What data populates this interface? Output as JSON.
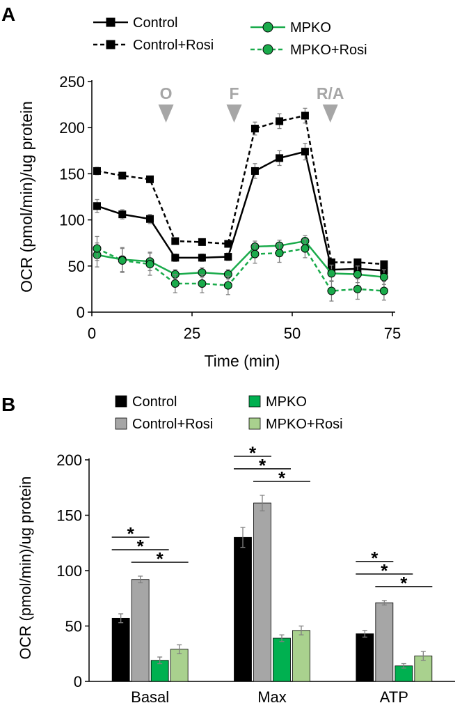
{
  "panel_a": {
    "label": "A"
  },
  "panel_b": {
    "label": "B"
  },
  "chart_data": [
    {
      "type": "line",
      "xlabel": "Time (min)",
      "ylabel": "OCR (pmol/min)/ug protein",
      "xlim": [
        0,
        75
      ],
      "ylim": [
        0,
        250
      ],
      "xticks": [
        0,
        25,
        50,
        75
      ],
      "yticks": [
        0,
        50,
        100,
        150,
        200,
        250
      ],
      "legend_position": "top",
      "grid": false,
      "x": [
        1.3,
        7.6,
        14.5,
        20.8,
        27.5,
        34,
        40.7,
        46.8,
        53.2,
        59.8,
        66.3,
        72.9
      ],
      "annotations": [
        {
          "label": "O",
          "x": 18.5
        },
        {
          "label": "F",
          "x": 35.5
        },
        {
          "label": "R/A",
          "x": 59.5
        }
      ],
      "annotation_color": "#a6a6a6",
      "series": [
        {
          "name": "Control",
          "color": "#000000",
          "line": "solid",
          "marker": "square",
          "values": [
            115,
            106,
            101,
            59,
            59,
            60,
            153,
            167,
            174,
            46,
            47,
            45
          ],
          "errors": [
            7,
            5,
            5,
            4,
            4,
            4,
            8,
            8,
            9,
            4,
            4,
            4
          ]
        },
        {
          "name": "Control+Rosi",
          "color": "#000000",
          "line": "dashed",
          "marker": "square",
          "values": [
            153,
            148,
            144,
            77,
            76,
            74,
            199,
            207,
            213,
            54,
            54,
            52
          ],
          "errors": [
            4,
            3,
            3,
            3,
            3,
            3,
            7,
            8,
            8,
            3,
            3,
            3
          ]
        },
        {
          "name": "MPKO",
          "color": "#1aab4b",
          "line": "solid",
          "marker": "circle",
          "values": [
            62,
            57,
            55,
            41,
            43,
            41,
            71,
            72,
            77,
            42,
            41,
            38
          ],
          "errors": [
            13,
            13,
            10,
            5,
            5,
            5,
            6,
            6,
            6,
            9,
            9,
            8
          ]
        },
        {
          "name": "MPKO+Rosi",
          "color": "#1aab4b",
          "line": "dashed",
          "marker": "circle",
          "values": [
            69,
            56,
            52,
            31,
            31,
            29,
            63,
            64,
            69,
            23,
            25,
            23
          ],
          "errors": [
            13,
            13,
            12,
            10,
            10,
            10,
            10,
            10,
            10,
            11,
            11,
            10
          ]
        }
      ]
    },
    {
      "type": "bar",
      "categories": [
        "Basal",
        "Max",
        "ATP"
      ],
      "ylabel": "OCR (pmol/min)/ug protein",
      "ylim": [
        0,
        200
      ],
      "yticks": [
        0,
        50,
        100,
        150,
        200
      ],
      "legend_position": "top",
      "grid": false,
      "series": [
        {
          "name": "Control",
          "color": "#000000",
          "values": [
            57,
            130,
            43
          ],
          "errors": [
            4,
            9,
            3
          ]
        },
        {
          "name": "Control+Rosi",
          "color": "#a6a6a6",
          "values": [
            92,
            161,
            71
          ],
          "errors": [
            3,
            7,
            2
          ]
        },
        {
          "name": "MPKO",
          "color": "#00b050",
          "values": [
            19,
            39,
            14
          ],
          "errors": [
            3,
            3,
            2
          ]
        },
        {
          "name": "MPKO+Rosi",
          "color": "#a9d18e",
          "values": [
            29,
            46,
            23
          ],
          "errors": [
            4,
            4,
            4
          ]
        }
      ],
      "significance": [
        {
          "category": "Basal",
          "pairs": [
            [
              "Control",
              "Control+Rosi"
            ],
            [
              "Control",
              "MPKO"
            ],
            [
              "Control+Rosi",
              "MPKO+Rosi"
            ]
          ],
          "label": "*"
        },
        {
          "category": "Max",
          "pairs": [
            [
              "Control",
              "Control+Rosi"
            ],
            [
              "Control",
              "MPKO"
            ],
            [
              "Control+Rosi",
              "MPKO+Rosi"
            ]
          ],
          "label": "*"
        },
        {
          "category": "ATP",
          "pairs": [
            [
              "Control",
              "Control+Rosi"
            ],
            [
              "Control",
              "MPKO"
            ],
            [
              "Control+Rosi",
              "MPKO+Rosi"
            ]
          ],
          "label": "*"
        }
      ]
    }
  ]
}
